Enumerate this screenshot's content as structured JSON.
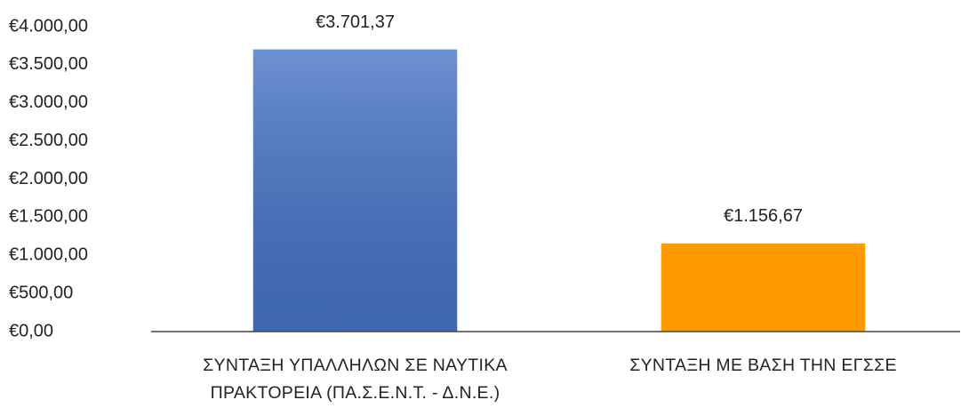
{
  "chart_data": {
    "type": "bar",
    "categories": [
      "ΣΥΝΤΑΞΗ ΥΠΑΛΛΗΛΩΝ ΣΕ ΝΑΥΤΙΚΑ ΠΡΑΚΤΟΡΕΙΑ (ΠΑ.Σ.Ε.Ν.Τ. - Δ.Ν.Ε.)",
      "ΣΥΝΤΑΞΗ ΜΕ ΒΑΣΗ ΤΗΝ ΕΓΣΣΕ"
    ],
    "values": [
      3701.37,
      1156.67
    ],
    "value_labels": [
      "€3.701,37",
      "€1.156,67"
    ],
    "colors": [
      "#4472c4",
      "#ff9900"
    ],
    "ylim": [
      0,
      4000
    ],
    "yticks": [
      {
        "value": 0,
        "label": "€0,00"
      },
      {
        "value": 500,
        "label": "€500,00"
      },
      {
        "value": 1000,
        "label": "€1.000,00"
      },
      {
        "value": 1500,
        "label": "€1.500,00"
      },
      {
        "value": 2000,
        "label": "€2.000,00"
      },
      {
        "value": 2500,
        "label": "€2.500,00"
      },
      {
        "value": 3000,
        "label": "€3.000,00"
      },
      {
        "value": 3500,
        "label": "€3.500,00"
      },
      {
        "value": 4000,
        "label": "€4.000,00"
      }
    ],
    "grid": false
  }
}
